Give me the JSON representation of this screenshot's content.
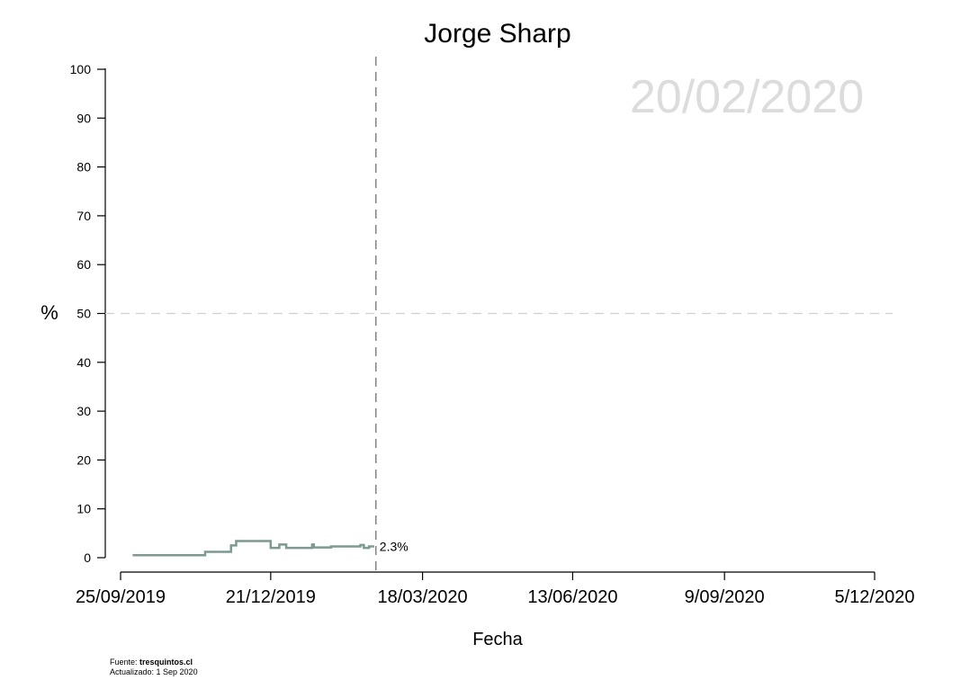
{
  "chart_data": {
    "type": "line",
    "title": "Jorge Sharp",
    "xlabel": "Fecha",
    "ylabel": "%",
    "ylim": [
      0,
      100
    ],
    "y_ticks": [
      0,
      10,
      20,
      30,
      40,
      50,
      60,
      70,
      80,
      90,
      100
    ],
    "x_ticks": [
      "25/09/2019",
      "21/12/2019",
      "18/03/2020",
      "13/06/2020",
      "9/09/2020",
      "5/12/2020"
    ],
    "xlim": [
      "2019-09-25",
      "2020-12-05"
    ],
    "date_label": "20/02/2020",
    "reference_hline": 50,
    "reference_vline": "2020-02-20",
    "end_label": "2.3%",
    "grid": false,
    "series": [
      {
        "color": "#7a9a92",
        "step": true,
        "points": [
          {
            "x": "2019-10-02",
            "y": 0.5
          },
          {
            "x": "2019-11-13",
            "y": 1.2
          },
          {
            "x": "2019-11-28",
            "y": 2.5
          },
          {
            "x": "2019-12-01",
            "y": 3.4
          },
          {
            "x": "2019-12-21",
            "y": 2.0
          },
          {
            "x": "2019-12-26",
            "y": 2.7
          },
          {
            "x": "2019-12-30",
            "y": 2.0
          },
          {
            "x": "2020-01-14",
            "y": 2.7
          },
          {
            "x": "2020-01-15",
            "y": 2.1
          },
          {
            "x": "2020-01-25",
            "y": 2.3
          },
          {
            "x": "2020-02-11",
            "y": 2.6
          },
          {
            "x": "2020-02-13",
            "y": 2.0
          },
          {
            "x": "2020-02-16",
            "y": 2.3
          },
          {
            "x": "2020-02-19",
            "y": 2.3
          }
        ]
      }
    ]
  },
  "footer": {
    "source_prefix": "Fuente: ",
    "source_site": "tresquintos.cl",
    "updated": "Actualizado: 1 Sep 2020"
  }
}
